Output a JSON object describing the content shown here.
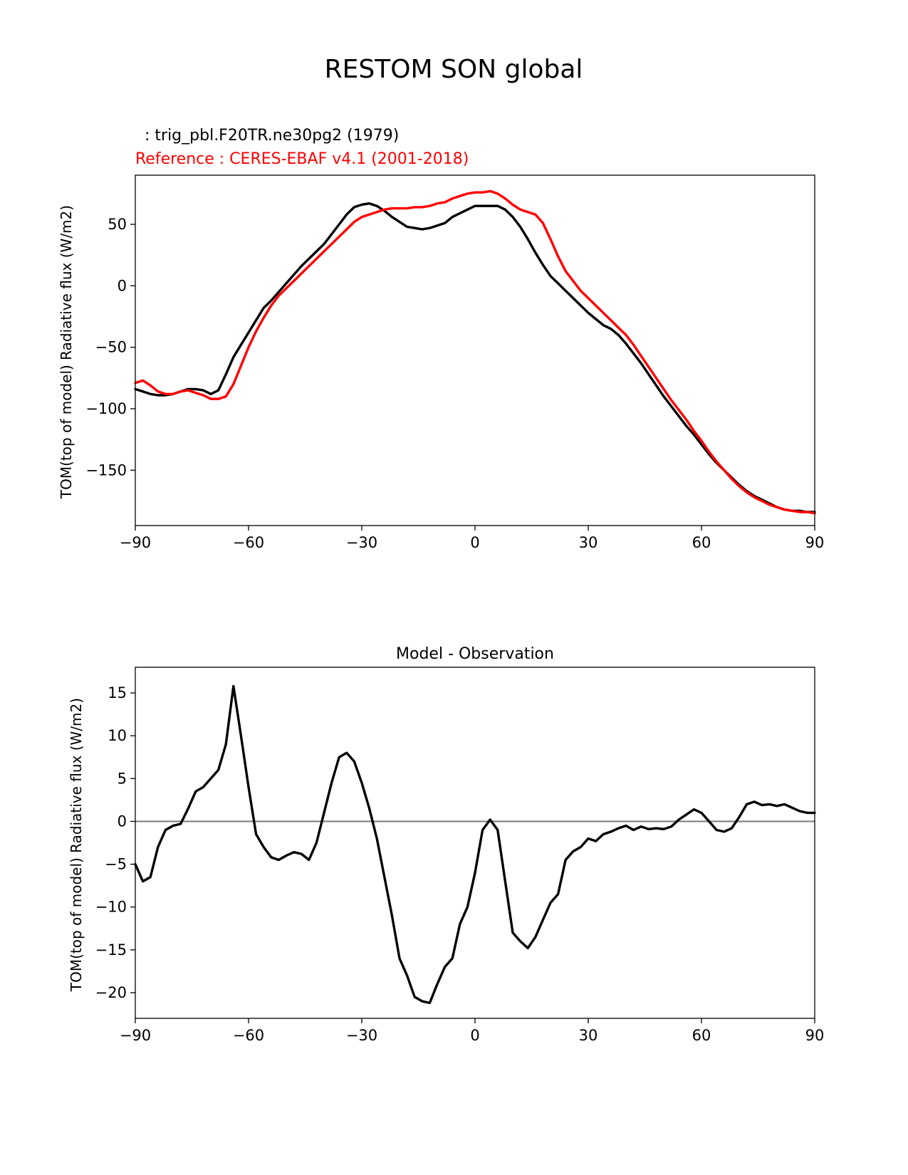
{
  "figure": {
    "suptitle": "RESTOM SON global"
  },
  "chart_data": [
    {
      "type": "line",
      "legend_model": " : trig_pbl.F20TR.ne30pg2 (1979)",
      "legend_ref": "Reference : CERES-EBAF v4.1 (2001-2018)",
      "xlabel": "",
      "ylabel": "TOM(top of model) Radiative flux (W/m2)",
      "xlim": [
        -90,
        90
      ],
      "ylim": [
        -195,
        90
      ],
      "xticks": [
        -90,
        -60,
        -30,
        0,
        30,
        60,
        90
      ],
      "xtick_labels": [
        "−90",
        "−60",
        "−30",
        "0",
        "30",
        "60",
        "90"
      ],
      "yticks": [
        50,
        0,
        -50,
        -100,
        -150
      ],
      "ytick_labels": [
        "50",
        "0",
        "−50",
        "−100",
        "−150"
      ],
      "grid": false,
      "series": [
        {
          "color": "#000000",
          "x": [
            -90,
            -88,
            -86,
            -84,
            -82,
            -80,
            -78,
            -76,
            -74,
            -72,
            -70,
            -68,
            -66,
            -64,
            -62,
            -60,
            -58,
            -56,
            -54,
            -52,
            -50,
            -48,
            -46,
            -44,
            -42,
            -40,
            -38,
            -36,
            -34,
            -32,
            -30,
            -28,
            -26,
            -24,
            -22,
            -20,
            -18,
            -16,
            -14,
            -12,
            -10,
            -8,
            -6,
            -4,
            -2,
            0,
            2,
            4,
            6,
            8,
            10,
            12,
            14,
            16,
            18,
            20,
            22,
            24,
            26,
            28,
            30,
            32,
            34,
            36,
            38,
            40,
            42,
            44,
            46,
            48,
            50,
            52,
            54,
            56,
            58,
            60,
            62,
            64,
            66,
            68,
            70,
            72,
            74,
            76,
            78,
            80,
            82,
            84,
            86,
            88,
            90
          ],
          "y": [
            -84,
            -86,
            -88,
            -89,
            -89,
            -88,
            -86,
            -84,
            -84,
            -85,
            -88,
            -85,
            -72,
            -58,
            -48,
            -38,
            -28,
            -18,
            -12,
            -5,
            2,
            9,
            16,
            22,
            28,
            34,
            42,
            50,
            58,
            64,
            66,
            67,
            65,
            61,
            56,
            52,
            48,
            47,
            46,
            47,
            49,
            51,
            56,
            59,
            62,
            65,
            65,
            65,
            65,
            62,
            56,
            48,
            38,
            27,
            17,
            8,
            2,
            -4,
            -10,
            -16,
            -22,
            -27,
            -32,
            -35,
            -40,
            -47,
            -55,
            -63,
            -72,
            -81,
            -90,
            -98,
            -106,
            -114,
            -121,
            -129,
            -137,
            -144,
            -150,
            -156,
            -162,
            -167,
            -171,
            -174,
            -177,
            -180,
            -182,
            -183,
            -183,
            -184,
            -184
          ]
        },
        {
          "color": "#ff0000",
          "x": [
            -90,
            -88,
            -86,
            -84,
            -82,
            -80,
            -78,
            -76,
            -74,
            -72,
            -70,
            -68,
            -66,
            -64,
            -62,
            -60,
            -58,
            -56,
            -54,
            -52,
            -50,
            -48,
            -46,
            -44,
            -42,
            -40,
            -38,
            -36,
            -34,
            -32,
            -30,
            -28,
            -26,
            -24,
            -22,
            -20,
            -18,
            -16,
            -14,
            -12,
            -10,
            -8,
            -6,
            -4,
            -2,
            0,
            2,
            4,
            6,
            8,
            10,
            12,
            14,
            16,
            18,
            20,
            22,
            24,
            26,
            28,
            30,
            32,
            34,
            36,
            38,
            40,
            42,
            44,
            46,
            48,
            50,
            52,
            54,
            56,
            58,
            60,
            62,
            64,
            66,
            68,
            70,
            72,
            74,
            76,
            78,
            80,
            82,
            84,
            86,
            88,
            90
          ],
          "y": [
            -79,
            -77,
            -81,
            -86,
            -88,
            -88,
            -86,
            -85,
            -87,
            -89,
            -92,
            -92,
            -90,
            -80,
            -65,
            -50,
            -37,
            -26,
            -16,
            -8,
            -2,
            4,
            10,
            16,
            22,
            28,
            34,
            40,
            46,
            52,
            56,
            58,
            60,
            62,
            63,
            63,
            63,
            64,
            64,
            65,
            67,
            68,
            71,
            73,
            75,
            76,
            76,
            77,
            75,
            71,
            66,
            62,
            60,
            58,
            51,
            38,
            24,
            12,
            4,
            -4,
            -10,
            -16,
            -22,
            -28,
            -34,
            -40,
            -48,
            -57,
            -66,
            -75,
            -84,
            -93,
            -101,
            -109,
            -118,
            -126,
            -135,
            -143,
            -150,
            -157,
            -163,
            -168,
            -172,
            -175,
            -178,
            -180,
            -182,
            -183,
            -184,
            -184,
            -185
          ]
        }
      ]
    },
    {
      "type": "line",
      "title": "Model - Observation",
      "xlabel": "",
      "ylabel": "TOM(top of model) Radiative flux (W/m2)",
      "xlim": [
        -90,
        90
      ],
      "ylim": [
        -23,
        18
      ],
      "xticks": [
        -90,
        -60,
        -30,
        0,
        30,
        60,
        90
      ],
      "xtick_labels": [
        "−90",
        "−60",
        "−30",
        "0",
        "30",
        "60",
        "90"
      ],
      "yticks": [
        15,
        10,
        5,
        0,
        -5,
        -10,
        -15,
        -20
      ],
      "ytick_labels": [
        "15",
        "10",
        "5",
        "0",
        "−5",
        "−10",
        "−15",
        "−20"
      ],
      "grid": false,
      "zero_line_color": "#808080",
      "series": [
        {
          "color": "#000000",
          "x": [
            -90,
            -88,
            -86,
            -84,
            -82,
            -80,
            -78,
            -76,
            -74,
            -72,
            -70,
            -68,
            -66,
            -64,
            -62,
            -60,
            -58,
            -56,
            -54,
            -52,
            -50,
            -48,
            -46,
            -44,
            -42,
            -40,
            -38,
            -36,
            -34,
            -32,
            -30,
            -28,
            -26,
            -24,
            -22,
            -20,
            -18,
            -16,
            -14,
            -12,
            -10,
            -8,
            -6,
            -4,
            -2,
            0,
            2,
            4,
            6,
            8,
            10,
            12,
            14,
            16,
            18,
            20,
            22,
            24,
            26,
            28,
            30,
            32,
            34,
            36,
            38,
            40,
            42,
            44,
            46,
            48,
            50,
            52,
            54,
            56,
            58,
            60,
            62,
            64,
            66,
            68,
            70,
            72,
            74,
            76,
            78,
            80,
            82,
            84,
            86,
            88,
            90
          ],
          "y": [
            -5.0,
            -7.0,
            -6.5,
            -3.0,
            -1.0,
            -0.5,
            -0.3,
            1.5,
            3.5,
            4.0,
            5.0,
            6.0,
            9.0,
            15.8,
            10.0,
            4.0,
            -1.5,
            -3.0,
            -4.2,
            -4.5,
            -4.0,
            -3.6,
            -3.8,
            -4.5,
            -2.5,
            1.0,
            4.5,
            7.5,
            8.0,
            7.0,
            4.5,
            1.5,
            -2.0,
            -6.5,
            -11.0,
            -16.0,
            -18.0,
            -20.5,
            -21.0,
            -21.2,
            -19.0,
            -17.0,
            -16.0,
            -12.0,
            -10.0,
            -6.0,
            -1.0,
            0.2,
            -1.0,
            -7.0,
            -13.0,
            -14.0,
            -14.8,
            -13.5,
            -11.5,
            -9.5,
            -8.5,
            -4.5,
            -3.5,
            -3.0,
            -2.0,
            -2.3,
            -1.5,
            -1.2,
            -0.8,
            -0.5,
            -1.0,
            -0.6,
            -0.9,
            -0.8,
            -0.9,
            -0.6,
            0.2,
            0.8,
            1.4,
            1.0,
            0.0,
            -1.0,
            -1.2,
            -0.8,
            0.5,
            2.0,
            2.3,
            1.9,
            2.0,
            1.8,
            2.0,
            1.6,
            1.2,
            1.0,
            1.0
          ]
        }
      ]
    }
  ]
}
